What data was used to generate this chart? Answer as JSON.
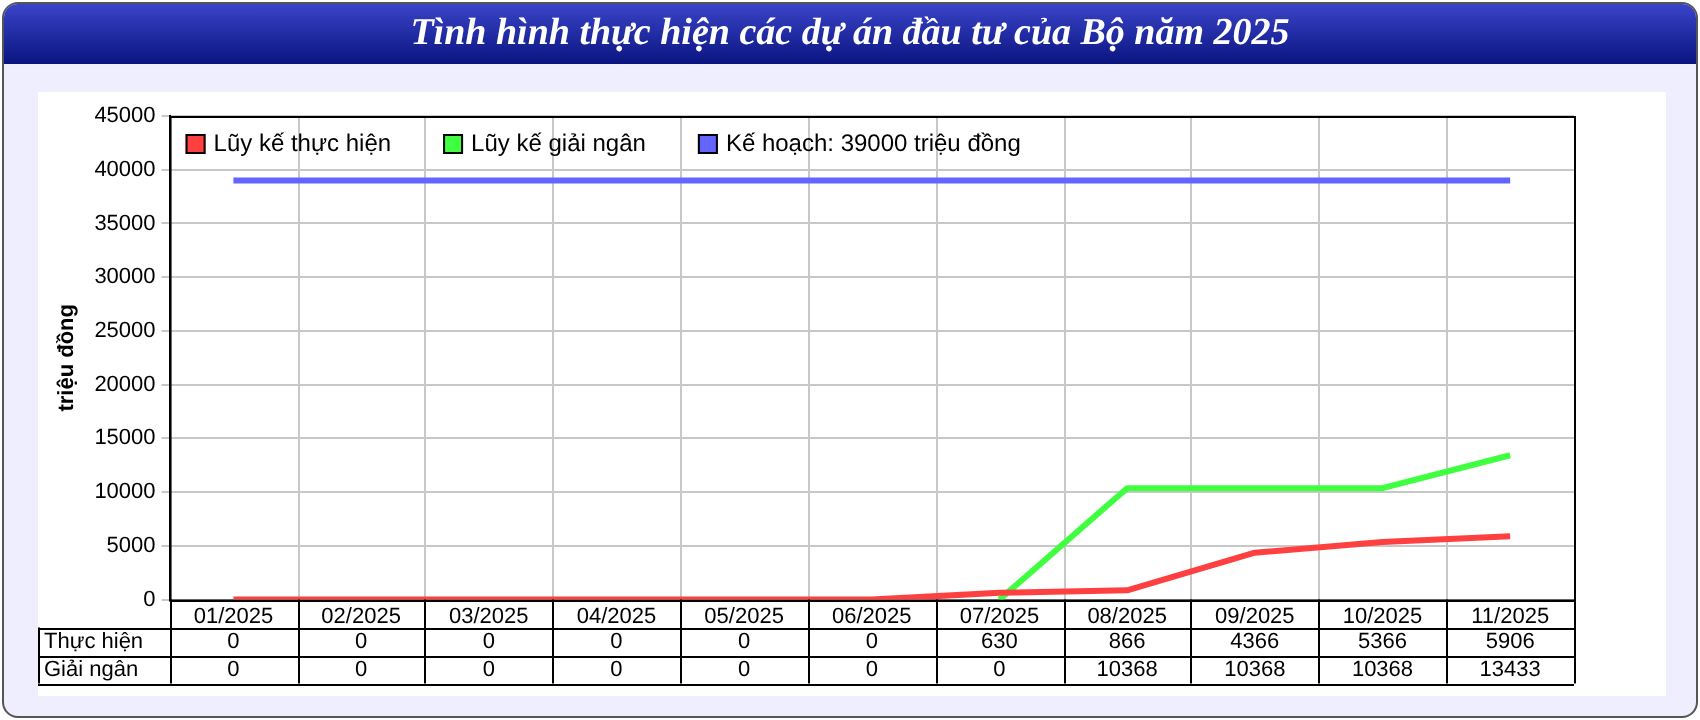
{
  "chart_data": {
    "type": "line",
    "title": "Tình hình thực hiện các dự án đầu tư của Bộ năm 2025",
    "ylabel": "triệu đồng",
    "categories": [
      "01/2025",
      "02/2025",
      "03/2025",
      "04/2025",
      "05/2025",
      "06/2025",
      "07/2025",
      "08/2025",
      "09/2025",
      "10/2025",
      "11/2025"
    ],
    "series": [
      {
        "name": "Lũy kế thực hiện",
        "color": "#ff4040",
        "values": [
          0,
          0,
          0,
          0,
          0,
          0,
          630,
          866,
          4366,
          5366,
          5906
        ],
        "value_labels": [
          "0",
          "0",
          "0",
          "0",
          "0",
          "0",
          "630",
          "866",
          "4366",
          "5366",
          "5906"
        ]
      },
      {
        "name": "Lũy kế giải ngân",
        "color": "#40ff40",
        "values": [
          null,
          null,
          null,
          null,
          null,
          null,
          0,
          10368,
          10368,
          10368,
          13433
        ],
        "value_labels": [
          "0",
          "0",
          "0",
          "0",
          "0",
          "0",
          "0",
          "10368",
          "10368",
          "10368",
          "13433"
        ]
      },
      {
        "name": "Kế hoạch: 39000 triệu đồng",
        "color": "#6464ff",
        "values": [
          39000,
          39000,
          39000,
          39000,
          39000,
          39000,
          39000,
          39000,
          39000,
          39000,
          39000
        ]
      }
    ],
    "annotations": [
      "Thực hiện",
      "Giải ngân"
    ],
    "ylim": [
      0,
      45000
    ],
    "yticks": [
      0,
      5000,
      10000,
      15000,
      20000,
      25000,
      30000,
      35000,
      40000,
      45000
    ],
    "grid": true,
    "legend": "top left",
    "marker": "none"
  }
}
